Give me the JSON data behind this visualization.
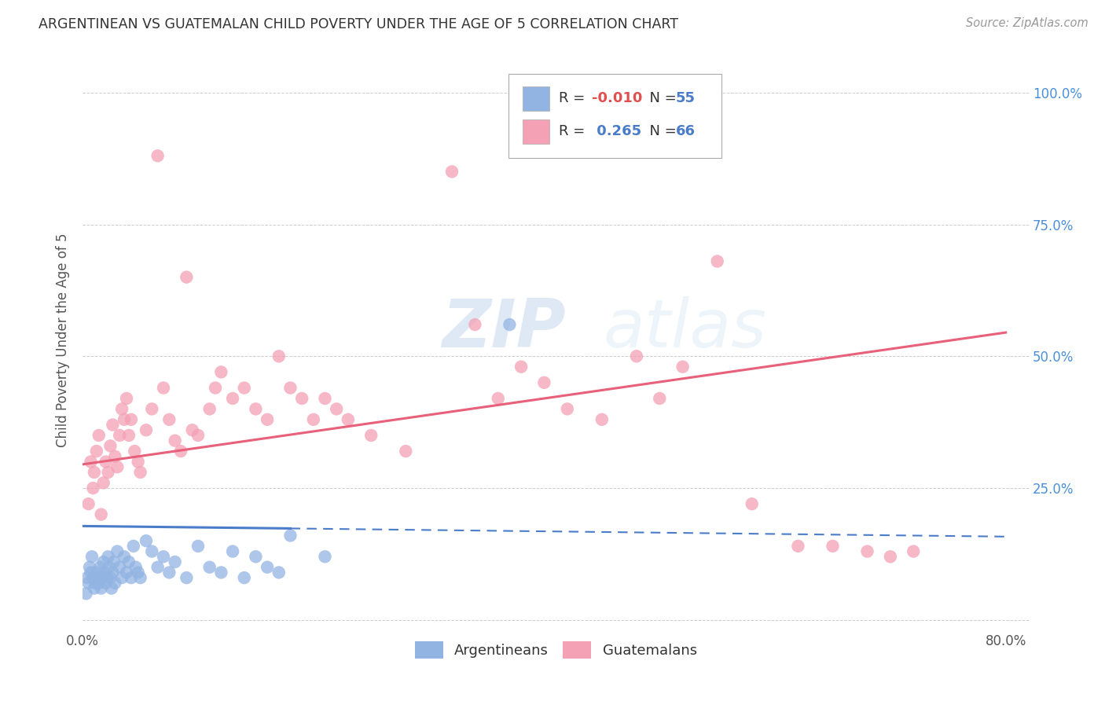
{
  "title": "ARGENTINEAN VS GUATEMALAN CHILD POVERTY UNDER THE AGE OF 5 CORRELATION CHART",
  "source": "Source: ZipAtlas.com",
  "ylabel": "Child Poverty Under the Age of 5",
  "xlim": [
    0.0,
    0.82
  ],
  "ylim": [
    -0.02,
    1.08
  ],
  "R_arg": -0.01,
  "N_arg": 55,
  "R_gua": 0.265,
  "N_gua": 66,
  "arg_color": "#92b4e3",
  "gua_color": "#f4a0b5",
  "arg_line_color": "#4a7cc9",
  "gua_line_color": "#e8607a",
  "watermark_zip": "ZIP",
  "watermark_atlas": "atlas",
  "background_color": "#ffffff",
  "tick_color_right": "#4a90d9",
  "gua_line_start_y": 0.295,
  "gua_line_end_y": 0.545,
  "arg_line_start_y": 0.178,
  "arg_line_end_y": 0.158,
  "arg_scatter_x": [
    0.003,
    0.004,
    0.005,
    0.006,
    0.007,
    0.008,
    0.009,
    0.01,
    0.011,
    0.012,
    0.013,
    0.014,
    0.015,
    0.016,
    0.017,
    0.018,
    0.019,
    0.02,
    0.021,
    0.022,
    0.023,
    0.024,
    0.025,
    0.026,
    0.027,
    0.028,
    0.03,
    0.032,
    0.034,
    0.036,
    0.038,
    0.04,
    0.042,
    0.044,
    0.046,
    0.048,
    0.05,
    0.055,
    0.06,
    0.065,
    0.07,
    0.075,
    0.08,
    0.09,
    0.1,
    0.11,
    0.12,
    0.13,
    0.14,
    0.15,
    0.16,
    0.17,
    0.18,
    0.21,
    0.37
  ],
  "arg_scatter_y": [
    0.05,
    0.08,
    0.07,
    0.1,
    0.09,
    0.12,
    0.08,
    0.06,
    0.07,
    0.09,
    0.08,
    0.07,
    0.1,
    0.06,
    0.08,
    0.11,
    0.09,
    0.07,
    0.08,
    0.12,
    0.1,
    0.08,
    0.06,
    0.09,
    0.11,
    0.07,
    0.13,
    0.1,
    0.08,
    0.12,
    0.09,
    0.11,
    0.08,
    0.14,
    0.1,
    0.09,
    0.08,
    0.15,
    0.13,
    0.1,
    0.12,
    0.09,
    0.11,
    0.08,
    0.14,
    0.1,
    0.09,
    0.13,
    0.08,
    0.12,
    0.1,
    0.09,
    0.16,
    0.12,
    0.56
  ],
  "gua_scatter_x": [
    0.005,
    0.007,
    0.009,
    0.01,
    0.012,
    0.014,
    0.016,
    0.018,
    0.02,
    0.022,
    0.024,
    0.026,
    0.028,
    0.03,
    0.032,
    0.034,
    0.036,
    0.038,
    0.04,
    0.042,
    0.045,
    0.048,
    0.05,
    0.055,
    0.06,
    0.065,
    0.07,
    0.075,
    0.08,
    0.085,
    0.09,
    0.095,
    0.1,
    0.11,
    0.115,
    0.12,
    0.13,
    0.14,
    0.15,
    0.16,
    0.17,
    0.18,
    0.19,
    0.2,
    0.21,
    0.22,
    0.23,
    0.25,
    0.28,
    0.32,
    0.34,
    0.36,
    0.38,
    0.4,
    0.42,
    0.45,
    0.48,
    0.5,
    0.52,
    0.55,
    0.58,
    0.62,
    0.65,
    0.68,
    0.7,
    0.72
  ],
  "gua_scatter_y": [
    0.22,
    0.3,
    0.25,
    0.28,
    0.32,
    0.35,
    0.2,
    0.26,
    0.3,
    0.28,
    0.33,
    0.37,
    0.31,
    0.29,
    0.35,
    0.4,
    0.38,
    0.42,
    0.35,
    0.38,
    0.32,
    0.3,
    0.28,
    0.36,
    0.4,
    0.88,
    0.44,
    0.38,
    0.34,
    0.32,
    0.65,
    0.36,
    0.35,
    0.4,
    0.44,
    0.47,
    0.42,
    0.44,
    0.4,
    0.38,
    0.5,
    0.44,
    0.42,
    0.38,
    0.42,
    0.4,
    0.38,
    0.35,
    0.32,
    0.85,
    0.56,
    0.42,
    0.48,
    0.45,
    0.4,
    0.38,
    0.5,
    0.42,
    0.48,
    0.68,
    0.22,
    0.14,
    0.14,
    0.13,
    0.12,
    0.13
  ]
}
